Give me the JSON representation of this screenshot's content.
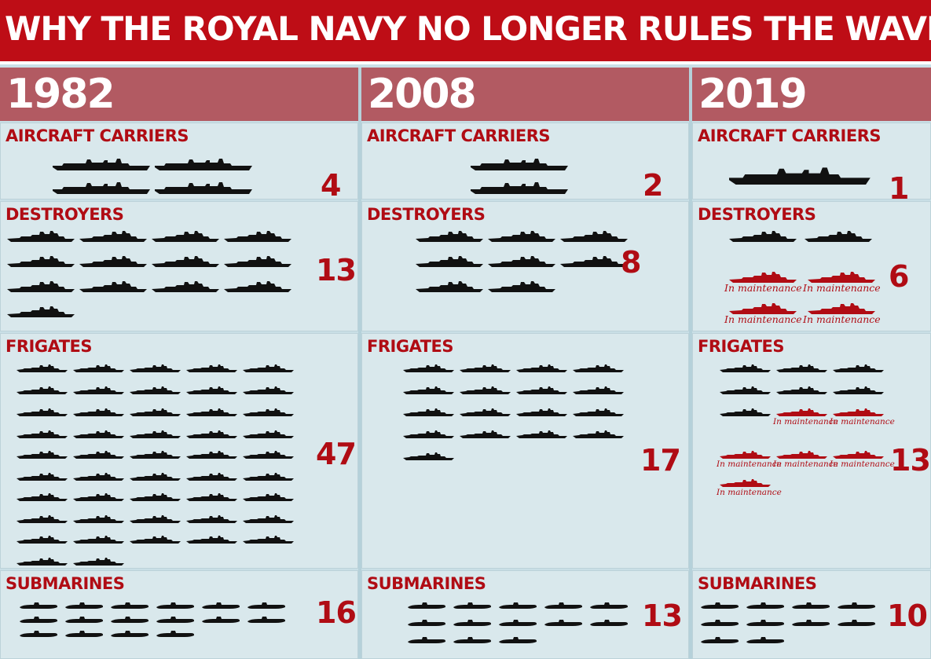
{
  "title": "WHY THE ROYAL NAVY NO LONGER RULES THE WAVES",
  "colors": {
    "banner": "#be0d16",
    "year_band": "#b25a62",
    "panel": "#d9e8ec",
    "accent_red": "#b00c14",
    "ship_active": "#111111",
    "ship_maintenance": "#b00c14"
  },
  "maintenance_label": "In maintenance",
  "columns": [
    {
      "year": "1982",
      "sections": {
        "carriers": {
          "label": "AIRCRAFT CARRIERS",
          "count": "4",
          "active": 4,
          "maintenance": 0
        },
        "destroyers": {
          "label": "DESTROYERS",
          "count": "13",
          "active": 13,
          "maintenance": 0
        },
        "frigates": {
          "label": "FRIGATES",
          "count": "47",
          "active": 47,
          "maintenance": 0
        },
        "submarines": {
          "label": "SUBMARINES",
          "count": "16",
          "active": 16,
          "maintenance": 0
        }
      }
    },
    {
      "year": "2008",
      "sections": {
        "carriers": {
          "label": "AIRCRAFT CARRIERS",
          "count": "2",
          "active": 2,
          "maintenance": 0
        },
        "destroyers": {
          "label": "DESTROYERS",
          "count": "8",
          "active": 8,
          "maintenance": 0
        },
        "frigates": {
          "label": "FRIGATES",
          "count": "17",
          "active": 17,
          "maintenance": 0
        },
        "submarines": {
          "label": "SUBMARINES",
          "count": "13",
          "active": 13,
          "maintenance": 0
        }
      }
    },
    {
      "year": "2019",
      "sections": {
        "carriers": {
          "label": "AIRCRAFT CARRIERS",
          "count": "1",
          "active": 1,
          "maintenance": 0
        },
        "destroyers": {
          "label": "DESTROYERS",
          "count": "6",
          "active": 2,
          "maintenance": 4
        },
        "frigates": {
          "label": "FRIGATES",
          "count": "13",
          "active": 7,
          "maintenance": 6
        },
        "submarines": {
          "label": "SUBMARINES",
          "count": "10",
          "active": 10,
          "maintenance": 0
        }
      }
    }
  ]
}
